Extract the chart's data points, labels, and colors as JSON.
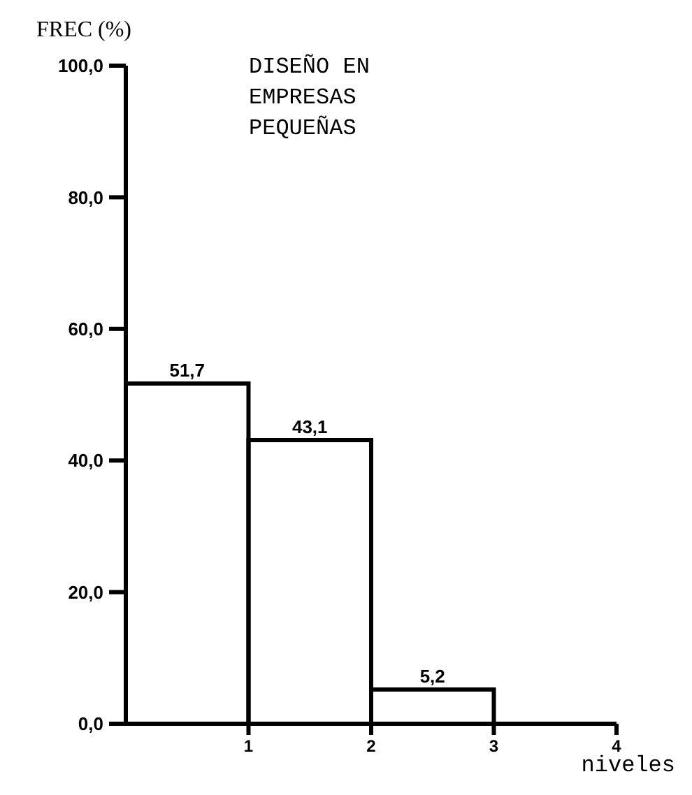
{
  "chart_data": {
    "type": "histogram",
    "title": "DISEÑO EN\nEMPRESAS\nPEQUEÑAS",
    "ylabel": "FREC (%)",
    "xlabel": "niveles",
    "bins": [
      0,
      1,
      2,
      3
    ],
    "values": [
      51.7,
      43.1,
      5.2
    ],
    "value_labels": [
      "51,7",
      "43,1",
      "5,2"
    ],
    "color": "#000000",
    "xlim": [
      0,
      4
    ],
    "xticks": [
      1,
      2,
      3,
      4
    ],
    "ylim": [
      0,
      100
    ],
    "yticks": [
      {
        "value": 0,
        "label": "0,0"
      },
      {
        "value": 20,
        "label": "20,0"
      },
      {
        "value": 40,
        "label": "40,0"
      },
      {
        "value": 60,
        "label": "60,0"
      },
      {
        "value": 80,
        "label": "80,0"
      },
      {
        "value": 100,
        "label": "100,0"
      }
    ]
  }
}
